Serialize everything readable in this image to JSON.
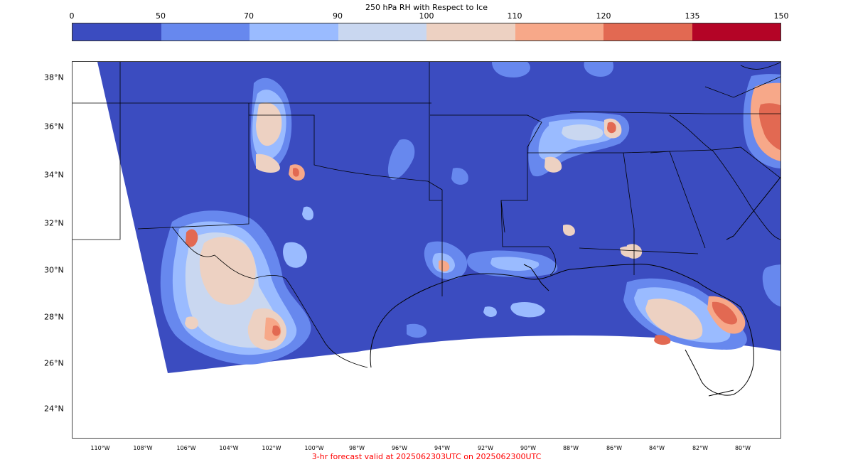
{
  "colorbar": {
    "title": "250 hPa RH with Respect to Ice",
    "ticks": [
      "0",
      "50",
      "70",
      "90",
      "100",
      "110",
      "120",
      "135",
      "150"
    ],
    "colors": [
      "#3b4cc0",
      "#6788ee",
      "#9abbff",
      "#c9d7f0",
      "#edd1c2",
      "#f7a889",
      "#e26952",
      "#b40426"
    ]
  },
  "axes": {
    "lat_labels": [
      "38°N",
      "36°N",
      "34°N",
      "32°N",
      "30°N",
      "28°N",
      "26°N",
      "24°N"
    ],
    "lon_labels": [
      "110°W",
      "108°W",
      "106°W",
      "104°W",
      "102°W",
      "100°W",
      "98°W",
      "96°W",
      "94°W",
      "92°W",
      "90°W",
      "88°W",
      "86°W",
      "84°W",
      "82°W",
      "80°W"
    ]
  },
  "footer": {
    "caption": "3-hr forecast valid at 2025062303UTC on 2025062300UTC",
    "color": "#ff0000"
  }
}
